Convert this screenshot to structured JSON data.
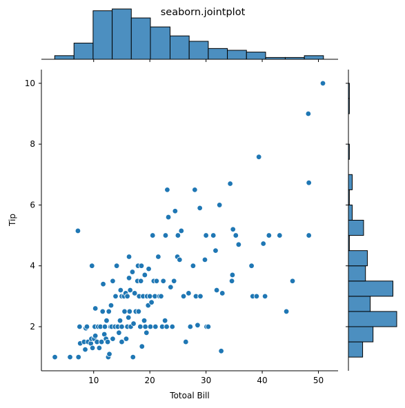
{
  "chart_data": {
    "type": "scatter",
    "title": "seaborn.jointplot",
    "xlabel": "Totoal Bill",
    "ylabel": "Tip",
    "xlim": [
      0.7,
      53.5
    ],
    "ylim": [
      0.55,
      10.45
    ],
    "xticks": [
      10,
      20,
      30,
      40,
      50
    ],
    "yticks": [
      2,
      4,
      6,
      8,
      10
    ],
    "grid": false,
    "legend": "none",
    "color": "#1f77b4",
    "hist_color": "#4c8fc0",
    "points": [
      [
        3.1,
        1.0
      ],
      [
        5.8,
        1.0
      ],
      [
        7.3,
        1.0
      ],
      [
        7.2,
        5.15
      ],
      [
        7.5,
        2.0
      ],
      [
        7.6,
        1.45
      ],
      [
        8.3,
        1.5
      ],
      [
        8.5,
        1.25
      ],
      [
        8.6,
        1.95
      ],
      [
        8.8,
        2.0
      ],
      [
        9.0,
        1.5
      ],
      [
        9.5,
        1.45
      ],
      [
        9.6,
        1.6
      ],
      [
        9.7,
        4.0
      ],
      [
        9.8,
        1.3
      ],
      [
        10.1,
        1.6
      ],
      [
        10.2,
        2.0
      ],
      [
        10.3,
        1.7
      ],
      [
        10.3,
        2.6
      ],
      [
        10.6,
        1.5
      ],
      [
        10.8,
        2.0
      ],
      [
        11.0,
        1.3
      ],
      [
        11.2,
        2.0
      ],
      [
        11.4,
        1.5
      ],
      [
        11.6,
        2.5
      ],
      [
        11.7,
        3.4
      ],
      [
        11.9,
        1.75
      ],
      [
        12.0,
        2.0
      ],
      [
        12.2,
        1.6
      ],
      [
        12.3,
        2.2
      ],
      [
        12.5,
        1.5
      ],
      [
        12.6,
        1.0
      ],
      [
        12.7,
        2.5
      ],
      [
        12.8,
        1.1
      ],
      [
        12.9,
        2.0
      ],
      [
        13.0,
        2.0
      ],
      [
        13.1,
        2.7
      ],
      [
        13.2,
        2.0
      ],
      [
        13.4,
        1.6
      ],
      [
        13.4,
        3.5
      ],
      [
        13.8,
        2.0
      ],
      [
        13.9,
        3.0
      ],
      [
        14.1,
        4.0
      ],
      [
        14.3,
        2.0
      ],
      [
        14.5,
        1.8
      ],
      [
        14.7,
        2.2
      ],
      [
        14.8,
        3.2
      ],
      [
        15.0,
        1.5
      ],
      [
        15.0,
        3.0
      ],
      [
        15.0,
        2.0
      ],
      [
        15.4,
        3.0
      ],
      [
        15.5,
        2.5
      ],
      [
        15.7,
        3.1
      ],
      [
        15.8,
        1.6
      ],
      [
        16.0,
        2.0
      ],
      [
        16.0,
        3.0
      ],
      [
        16.2,
        2.3
      ],
      [
        16.3,
        4.3
      ],
      [
        16.3,
        3.6
      ],
      [
        16.4,
        2.5
      ],
      [
        16.5,
        3.2
      ],
      [
        16.6,
        2.0
      ],
      [
        16.9,
        3.8
      ],
      [
        17.0,
        1.0
      ],
      [
        17.1,
        2.1
      ],
      [
        17.3,
        3.1
      ],
      [
        17.5,
        2.5
      ],
      [
        17.8,
        3.5
      ],
      [
        17.9,
        4.0
      ],
      [
        18.0,
        2.5
      ],
      [
        18.1,
        3.0
      ],
      [
        18.3,
        2.0
      ],
      [
        18.4,
        3.5
      ],
      [
        18.5,
        4.0
      ],
      [
        18.6,
        1.35
      ],
      [
        18.8,
        3.0
      ],
      [
        19.0,
        2.2
      ],
      [
        19.1,
        3.7
      ],
      [
        19.2,
        2.0
      ],
      [
        19.4,
        1.8
      ],
      [
        19.5,
        3.0
      ],
      [
        19.7,
        2.7
      ],
      [
        19.8,
        3.9
      ],
      [
        20.0,
        3.0
      ],
      [
        20.1,
        2.0
      ],
      [
        20.3,
        2.8
      ],
      [
        20.5,
        5.0
      ],
      [
        20.7,
        3.5
      ],
      [
        20.9,
        3.0
      ],
      [
        21.0,
        2.0
      ],
      [
        21.2,
        3.5
      ],
      [
        21.5,
        4.3
      ],
      [
        21.7,
        3.0
      ],
      [
        22.0,
        3.0
      ],
      [
        22.2,
        2.0
      ],
      [
        22.4,
        3.5
      ],
      [
        22.7,
        2.2
      ],
      [
        22.8,
        5.0
      ],
      [
        23.0,
        2.0
      ],
      [
        23.1,
        6.5
      ],
      [
        23.3,
        5.6
      ],
      [
        23.7,
        3.3
      ],
      [
        24.0,
        2.0
      ],
      [
        24.3,
        3.5
      ],
      [
        24.5,
        5.8
      ],
      [
        24.9,
        4.3
      ],
      [
        25.0,
        5.0
      ],
      [
        25.3,
        4.2
      ],
      [
        25.6,
        5.15
      ],
      [
        26.0,
        3.0
      ],
      [
        26.4,
        1.5
      ],
      [
        26.9,
        3.1
      ],
      [
        27.2,
        2.0
      ],
      [
        27.7,
        4.0
      ],
      [
        28.0,
        6.5
      ],
      [
        28.2,
        3.0
      ],
      [
        28.5,
        2.05
      ],
      [
        28.9,
        5.9
      ],
      [
        29.0,
        3.0
      ],
      [
        29.8,
        4.2
      ],
      [
        30.0,
        5.0
      ],
      [
        30.1,
        2.0
      ],
      [
        30.4,
        2.0
      ],
      [
        31.3,
        5.0
      ],
      [
        31.7,
        4.5
      ],
      [
        31.9,
        3.2
      ],
      [
        32.4,
        6.0
      ],
      [
        32.7,
        1.2
      ],
      [
        32.9,
        3.1
      ],
      [
        34.3,
        6.7
      ],
      [
        34.6,
        3.5
      ],
      [
        34.7,
        3.7
      ],
      [
        34.8,
        5.2
      ],
      [
        35.3,
        5.0
      ],
      [
        35.8,
        4.7
      ],
      [
        38.1,
        4.0
      ],
      [
        38.3,
        3.0
      ],
      [
        39.0,
        3.0
      ],
      [
        39.4,
        7.58
      ],
      [
        40.2,
        4.73
      ],
      [
        40.5,
        3.0
      ],
      [
        41.2,
        5.0
      ],
      [
        43.1,
        5.0
      ],
      [
        44.3,
        2.5
      ],
      [
        45.4,
        3.5
      ],
      [
        48.2,
        9.0
      ],
      [
        48.3,
        6.73
      ],
      [
        48.3,
        5.0
      ],
      [
        50.8,
        10.0
      ]
    ],
    "x_histogram": {
      "bin_edges": [
        3.07,
        6.5,
        9.9,
        13.3,
        16.7,
        20.1,
        23.6,
        27.0,
        30.4,
        33.8,
        37.2,
        40.6,
        44.1,
        47.5,
        50.9
      ],
      "counts": [
        2,
        9,
        27,
        28,
        23,
        18,
        13,
        10,
        6,
        5,
        4,
        1,
        1,
        2
      ]
    },
    "y_histogram": {
      "bin_edges": [
        1.0,
        1.5,
        2.0,
        2.5,
        3.0,
        3.5,
        4.0,
        4.5,
        5.0,
        5.5,
        6.0,
        6.5,
        7.0,
        7.5,
        8.0,
        8.5,
        9.0,
        9.5,
        10.0
      ],
      "counts": [
        15,
        26,
        51,
        23,
        47,
        18,
        20,
        1,
        16,
        4,
        1,
        4,
        0,
        1,
        0,
        0,
        1,
        1
      ]
    }
  }
}
